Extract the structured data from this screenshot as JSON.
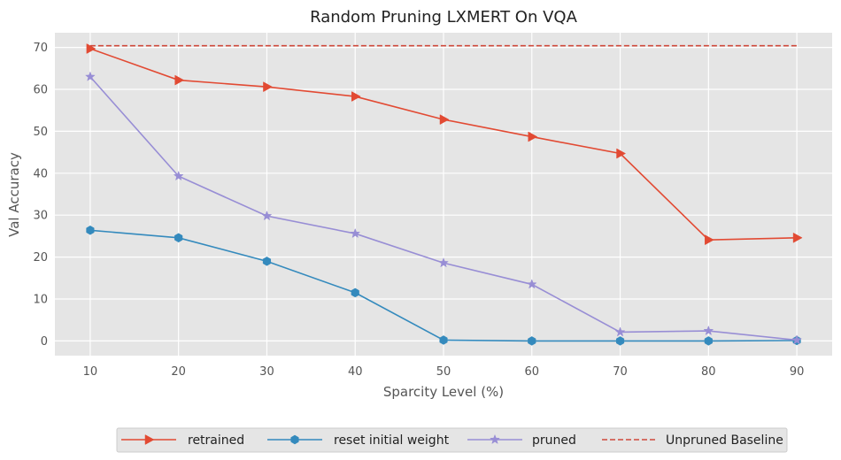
{
  "chart_data": {
    "type": "line",
    "title": "Random Pruning LXMERT On VQA",
    "xlabel": "Sparcity Level (%)",
    "ylabel": "Val Accuracy",
    "x": [
      10,
      20,
      30,
      40,
      50,
      60,
      70,
      80,
      90
    ],
    "xlim": [
      6,
      94
    ],
    "ylim": [
      -3.5,
      73.5
    ],
    "xticks": [
      10,
      20,
      30,
      40,
      50,
      60,
      70,
      80,
      90
    ],
    "yticks": [
      0,
      10,
      20,
      30,
      40,
      50,
      60,
      70
    ],
    "grid": true,
    "legend_position": "bottom-center",
    "series": [
      {
        "name": "retrained",
        "color": "#E24A33",
        "marker": "triangle-right",
        "dashed": false,
        "values": [
          69.7,
          62.2,
          60.6,
          58.3,
          52.8,
          48.7,
          44.7,
          24.1,
          24.6
        ]
      },
      {
        "name": "reset initial weight",
        "color": "#348ABD",
        "marker": "hexagon",
        "dashed": false,
        "values": [
          26.4,
          24.6,
          19.0,
          11.5,
          0.2,
          0.0,
          0.0,
          0.0,
          0.1
        ]
      },
      {
        "name": "pruned",
        "color": "#988ED5",
        "marker": "star",
        "dashed": false,
        "values": [
          63.0,
          39.3,
          29.8,
          25.6,
          18.6,
          13.5,
          2.1,
          2.4,
          0.2
        ]
      },
      {
        "name": "Unpruned Baseline",
        "color": "#D04A3C",
        "marker": "none",
        "dashed": true,
        "values": [
          70.4,
          70.4,
          70.4,
          70.4,
          70.4,
          70.4,
          70.4,
          70.4,
          70.4
        ]
      }
    ]
  }
}
